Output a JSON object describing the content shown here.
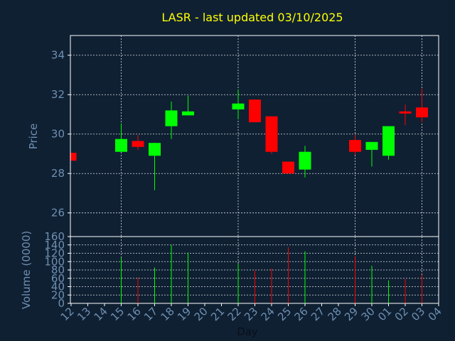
{
  "chart_data": {
    "type": "candlestick",
    "title": "LASR - last updated 03/10/2025",
    "xlabel": "Day",
    "ylabel_price": "Price",
    "ylabel_volume": "Volume (0000)",
    "price_ylim": [
      24.8,
      35
    ],
    "price_yticks": [
      26,
      28,
      30,
      32,
      34
    ],
    "volume_ylim": [
      0,
      160
    ],
    "volume_yticks": [
      0,
      20,
      40,
      60,
      80,
      100,
      120,
      140,
      160
    ],
    "days": [
      "12",
      "13",
      "14",
      "15",
      "16",
      "17",
      "18",
      "19",
      "20",
      "21",
      "22",
      "23",
      "24",
      "25",
      "26",
      "27",
      "28",
      "29",
      "30",
      "01",
      "02",
      "03",
      "04"
    ],
    "candles": [
      {
        "day": "12",
        "open": 29.05,
        "close": 28.65,
        "high": 29.05,
        "low": 28.65,
        "volume": 0
      },
      {
        "day": "15",
        "open": 29.1,
        "close": 29.75,
        "high": 30.55,
        "low": 29.1,
        "volume": 110
      },
      {
        "day": "16",
        "open": 29.65,
        "close": 29.35,
        "high": 29.95,
        "low": 29.2,
        "volume": 62
      },
      {
        "day": "17",
        "open": 28.9,
        "close": 29.55,
        "high": 29.55,
        "low": 27.15,
        "volume": 86
      },
      {
        "day": "18",
        "open": 30.4,
        "close": 31.2,
        "high": 31.65,
        "low": 29.75,
        "volume": 140
      },
      {
        "day": "19",
        "open": 30.95,
        "close": 31.15,
        "high": 31.95,
        "low": 30.95,
        "volume": 122
      },
      {
        "day": "22",
        "open": 31.25,
        "close": 31.55,
        "high": 32.25,
        "low": 30.75,
        "volume": 95
      },
      {
        "day": "23",
        "open": 31.75,
        "close": 30.6,
        "high": 31.75,
        "low": 30.6,
        "volume": 78
      },
      {
        "day": "24",
        "open": 30.9,
        "close": 29.1,
        "high": 30.9,
        "low": 29.0,
        "volume": 83
      },
      {
        "day": "25",
        "open": 28.6,
        "close": 28.0,
        "high": 28.6,
        "low": 28.0,
        "volume": 135
      },
      {
        "day": "26",
        "open": 28.2,
        "close": 29.1,
        "high": 29.4,
        "low": 27.8,
        "volume": 125
      },
      {
        "day": "29",
        "open": 29.7,
        "close": 29.1,
        "high": 29.95,
        "low": 28.95,
        "volume": 112
      },
      {
        "day": "30",
        "open": 29.2,
        "close": 29.6,
        "high": 29.6,
        "low": 28.35,
        "volume": 90
      },
      {
        "day": "01",
        "open": 28.9,
        "close": 30.4,
        "high": 30.4,
        "low": 28.7,
        "volume": 55
      },
      {
        "day": "02",
        "open": 31.15,
        "close": 31.05,
        "high": 31.5,
        "low": 30.45,
        "volume": 58
      },
      {
        "day": "03",
        "open": 31.35,
        "close": 30.85,
        "high": 32.3,
        "low": 30.6,
        "volume": 68
      }
    ],
    "colors": {
      "background": "#0f2033",
      "up": "#00ff00",
      "down": "#ff0000",
      "axis": "#ffffff",
      "grid": "#ffffff",
      "title": "#ffff00",
      "label": "#6f8fb0",
      "tick": "#6f8fb0"
    },
    "grid": true,
    "legend": "none"
  }
}
